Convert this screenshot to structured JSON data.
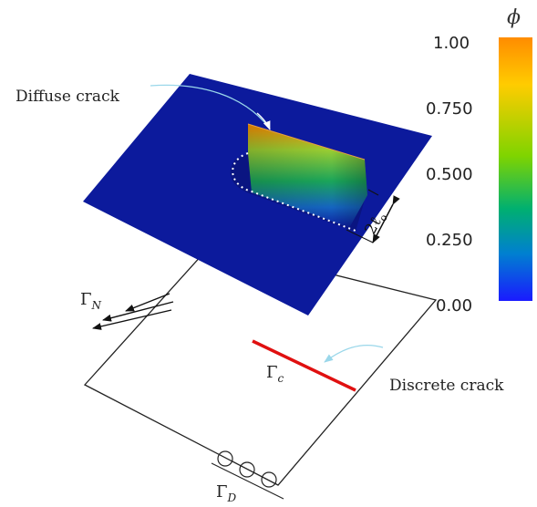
{
  "labels": {
    "diffuse_crack": "Diffuse crack",
    "discrete_crack": "Discrete crack",
    "width_marker": "2ℓ",
    "width_marker_sub": "o",
    "gamma_n": "Γ",
    "gamma_n_sub": "N",
    "gamma_c": "Γ",
    "gamma_c_sub": "c",
    "gamma_d": "Γ",
    "gamma_d_sub": "D"
  },
  "colorbar": {
    "title": "ϕ",
    "ticks": [
      "1.00",
      "0.750",
      "0.500",
      "0.250",
      "0.00"
    ],
    "colors": [
      "#ff8c00",
      "#ffcc00",
      "#7fd400",
      "#00b070",
      "#0080d0",
      "#1a1aff"
    ]
  },
  "colors": {
    "plate": "#0c1a9c",
    "discrete_crack": "#e01010",
    "annotation_arrow": "#9ad7ea",
    "outline": "#222222"
  }
}
